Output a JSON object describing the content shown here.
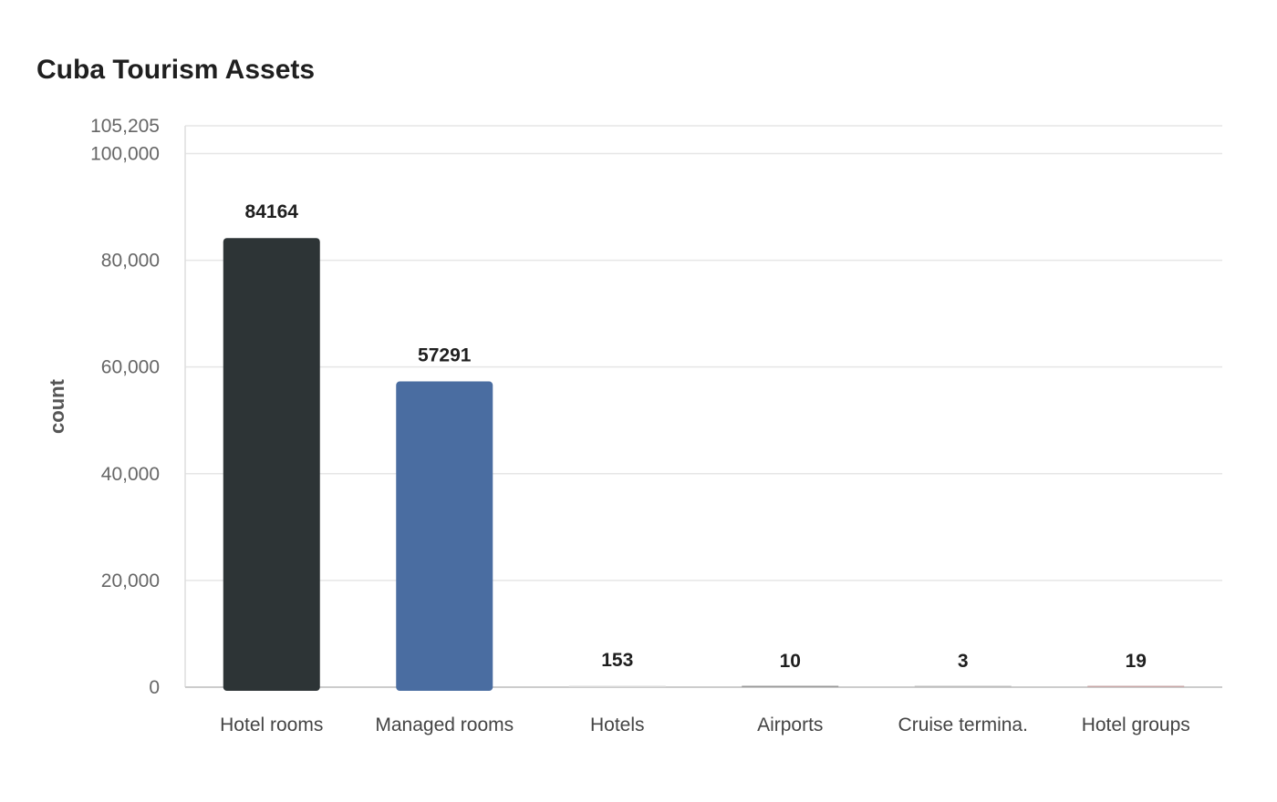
{
  "chart_data": {
    "type": "bar",
    "title": "Cuba Tourism Assets",
    "xlabel": "",
    "ylabel": "count",
    "categories": [
      "Hotel rooms",
      "Managed rooms",
      "Hotels",
      "Airports",
      "Cruise termina.",
      "Hotel groups"
    ],
    "values": [
      84164,
      57291,
      153,
      10,
      3,
      19
    ],
    "value_labels": [
      "84164",
      "57291",
      "153",
      "10",
      "3",
      "19"
    ],
    "ylim": [
      0,
      105205
    ],
    "yticks": [
      0,
      20000,
      40000,
      60000,
      80000,
      100000,
      105205
    ],
    "ytick_labels": [
      "0",
      "20,000",
      "40,000",
      "60,000",
      "80,000",
      "100,000",
      "105,205"
    ],
    "colors": [
      "#2d3436",
      "#4a6da1",
      "#d9d9d9",
      "#999999",
      "#bcbcbc",
      "#c7a7a7"
    ],
    "grid": true,
    "legend": "none"
  }
}
